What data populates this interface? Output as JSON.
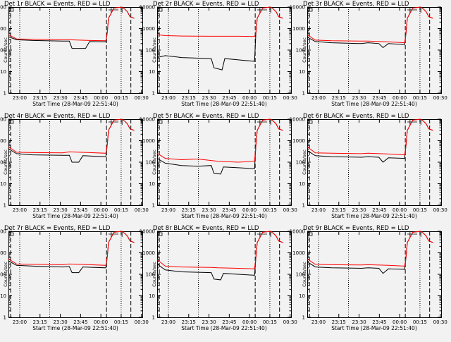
{
  "x_tick_labels": [
    "23:00",
    "23:15",
    "23:30",
    "23:45",
    "00:00",
    "00:15",
    "00:30"
  ],
  "y_tick_labels": [
    "1",
    "10",
    "100",
    "1000",
    "10000"
  ],
  "xlabel": "Start Time (28-Mar-09 22:51:40)",
  "ylabel": "Counts/sec",
  "colors": {
    "events": "#000000",
    "lld": "#ff0000"
  },
  "chart_data": [
    {
      "type": "line",
      "title": "Det 1r BLACK = Events, RED = LLD",
      "xlabel": "Start Time (28-Mar-09 22:51:40)",
      "ylabel": "Counts/sec",
      "yscale": "log",
      "ylim": [
        1,
        10000
      ],
      "xlim_min_after_start": [
        0,
        99
      ],
      "series": [
        {
          "name": "Events",
          "color": "#000000",
          "x": [
            0,
            6,
            18,
            40,
            45,
            47,
            57,
            60,
            72,
            73,
            74,
            78,
            84,
            86,
            88,
            89,
            90,
            93
          ],
          "y": [
            420,
            300,
            280,
            260,
            260,
            120,
            120,
            250,
            240,
            600,
            3000,
            9000,
            10000,
            8000,
            6000,
            4500,
            3500,
            3000
          ]
        },
        {
          "name": "LLD",
          "color": "#ff0000",
          "x": [
            0,
            6,
            18,
            40,
            45,
            60,
            72,
            73,
            74,
            78,
            84,
            86,
            88,
            89,
            90,
            93
          ],
          "y": [
            520,
            330,
            320,
            300,
            300,
            280,
            270,
            600,
            3000,
            9000,
            10000,
            8000,
            6000,
            4500,
            3500,
            3000
          ]
        }
      ]
    },
    {
      "type": "line",
      "title": "Det 2r BLACK = Events, RED = LLD",
      "xlabel": "Start Time (28-Mar-09 22:51:40)",
      "ylabel": "Counts/sec",
      "yscale": "log",
      "ylim": [
        1,
        10000
      ],
      "xlim_min_after_start": [
        0,
        99
      ],
      "series": [
        {
          "name": "Events",
          "color": "#000000",
          "x": [
            0,
            6,
            18,
            40,
            42,
            48,
            50,
            60,
            65,
            72,
            73,
            74,
            78,
            84,
            86,
            88,
            89,
            90,
            93
          ],
          "y": [
            45,
            55,
            45,
            40,
            15,
            12,
            40,
            35,
            33,
            30,
            600,
            3000,
            9000,
            10000,
            8000,
            6000,
            4500,
            3500,
            3000
          ]
        },
        {
          "name": "LLD",
          "color": "#ff0000",
          "x": [
            0,
            6,
            18,
            40,
            45,
            60,
            72,
            73,
            74,
            78,
            84,
            86,
            88,
            89,
            90,
            93
          ],
          "y": [
            520,
            470,
            450,
            440,
            440,
            440,
            430,
            600,
            3000,
            9000,
            10000,
            8000,
            6000,
            4500,
            3500,
            3000
          ]
        }
      ]
    },
    {
      "type": "line",
      "title": "Det 3r BLACK = Events, RED = LLD",
      "xlabel": "Start Time (28-Mar-09 22:51:40)",
      "ylabel": "Counts/sec",
      "yscale": "log",
      "ylim": [
        1,
        10000
      ],
      "xlim_min_after_start": [
        0,
        99
      ],
      "series": [
        {
          "name": "Events",
          "color": "#000000",
          "x": [
            0,
            6,
            18,
            40,
            45,
            53,
            56,
            60,
            72,
            73,
            74,
            78,
            84,
            86,
            88,
            89,
            90,
            93
          ],
          "y": [
            400,
            250,
            220,
            200,
            220,
            200,
            130,
            200,
            180,
            600,
            3000,
            9000,
            10000,
            8000,
            6000,
            4500,
            3500,
            3000
          ]
        },
        {
          "name": "LLD",
          "color": "#ff0000",
          "x": [
            0,
            6,
            18,
            40,
            45,
            60,
            72,
            73,
            74,
            78,
            84,
            86,
            88,
            89,
            90,
            93
          ],
          "y": [
            520,
            290,
            270,
            260,
            260,
            240,
            220,
            600,
            3000,
            9000,
            10000,
            8000,
            6000,
            4500,
            3500,
            3000
          ]
        }
      ]
    },
    {
      "type": "line",
      "title": "Det 4r BLACK = Events, RED = LLD",
      "xlabel": "Start Time (28-Mar-09 22:51:40)",
      "ylabel": "Counts/sec",
      "yscale": "log",
      "ylim": [
        1,
        10000
      ],
      "xlim_min_after_start": [
        0,
        99
      ],
      "series": [
        {
          "name": "Events",
          "color": "#000000",
          "x": [
            0,
            6,
            18,
            40,
            45,
            47,
            52,
            55,
            72,
            73,
            74,
            78,
            84,
            86,
            88,
            89,
            90,
            93
          ],
          "y": [
            420,
            250,
            220,
            210,
            210,
            100,
            100,
            200,
            180,
            600,
            3000,
            9000,
            10000,
            8000,
            6000,
            4500,
            3500,
            3000
          ]
        },
        {
          "name": "LLD",
          "color": "#ff0000",
          "x": [
            0,
            6,
            18,
            40,
            45,
            60,
            72,
            73,
            74,
            78,
            84,
            86,
            88,
            89,
            90,
            93
          ],
          "y": [
            520,
            290,
            280,
            270,
            300,
            280,
            260,
            600,
            3000,
            9000,
            10000,
            8000,
            6000,
            4500,
            3500,
            3000
          ]
        }
      ]
    },
    {
      "type": "line",
      "title": "Det 5r BLACK = Events, RED = LLD",
      "xlabel": "Start Time (28-Mar-09 22:51:40)",
      "ylabel": "Counts/sec",
      "yscale": "log",
      "ylim": [
        1,
        10000
      ],
      "xlim_min_after_start": [
        0,
        99
      ],
      "series": [
        {
          "name": "Events",
          "color": "#000000",
          "x": [
            0,
            6,
            18,
            30,
            40,
            42,
            47,
            49,
            60,
            72,
            73,
            74,
            78,
            84,
            86,
            88,
            89,
            90,
            93
          ],
          "y": [
            150,
            90,
            70,
            65,
            70,
            30,
            28,
            60,
            55,
            50,
            600,
            3000,
            9000,
            10000,
            8000,
            6000,
            4500,
            3500,
            3000
          ]
        },
        {
          "name": "LLD",
          "color": "#ff0000",
          "x": [
            0,
            6,
            18,
            30,
            40,
            45,
            60,
            72,
            73,
            74,
            78,
            84,
            86,
            88,
            89,
            90,
            93
          ],
          "y": [
            260,
            150,
            130,
            140,
            120,
            110,
            100,
            110,
            600,
            3000,
            9000,
            10000,
            8000,
            6000,
            4500,
            3500,
            3000
          ]
        }
      ]
    },
    {
      "type": "line",
      "title": "Det 6r BLACK = Events, RED = LLD",
      "xlabel": "Start Time (28-Mar-09 22:51:40)",
      "ylabel": "Counts/sec",
      "yscale": "log",
      "ylim": [
        1,
        10000
      ],
      "xlim_min_after_start": [
        0,
        99
      ],
      "series": [
        {
          "name": "Events",
          "color": "#000000",
          "x": [
            0,
            6,
            18,
            40,
            45,
            53,
            56,
            60,
            72,
            73,
            74,
            78,
            84,
            86,
            88,
            89,
            90,
            93
          ],
          "y": [
            350,
            200,
            180,
            170,
            180,
            170,
            100,
            160,
            150,
            600,
            3000,
            9000,
            10000,
            8000,
            6000,
            4500,
            3500,
            3000
          ]
        },
        {
          "name": "LLD",
          "color": "#ff0000",
          "x": [
            0,
            6,
            18,
            40,
            45,
            60,
            72,
            73,
            74,
            78,
            84,
            86,
            88,
            89,
            90,
            93
          ],
          "y": [
            520,
            270,
            260,
            250,
            260,
            240,
            220,
            600,
            3000,
            9000,
            10000,
            8000,
            6000,
            4500,
            3500,
            3000
          ]
        }
      ]
    },
    {
      "type": "line",
      "title": "Det 7r BLACK = Events, RED = LLD",
      "xlabel": "Start Time (28-Mar-09 22:51:40)",
      "ylabel": "Counts/sec",
      "yscale": "log",
      "ylim": [
        1,
        10000
      ],
      "xlim_min_after_start": [
        0,
        99
      ],
      "series": [
        {
          "name": "Events",
          "color": "#000000",
          "x": [
            0,
            6,
            18,
            40,
            45,
            47,
            52,
            55,
            72,
            73,
            74,
            78,
            84,
            86,
            88,
            89,
            90,
            93
          ],
          "y": [
            420,
            260,
            240,
            220,
            230,
            120,
            120,
            220,
            200,
            600,
            3000,
            9000,
            10000,
            8000,
            6000,
            4500,
            3500,
            3000
          ]
        },
        {
          "name": "LLD",
          "color": "#ff0000",
          "x": [
            0,
            6,
            18,
            40,
            45,
            60,
            72,
            73,
            74,
            78,
            84,
            86,
            88,
            89,
            90,
            93
          ],
          "y": [
            520,
            300,
            290,
            280,
            300,
            280,
            260,
            600,
            3000,
            9000,
            10000,
            8000,
            6000,
            4500,
            3500,
            3000
          ]
        }
      ]
    },
    {
      "type": "line",
      "title": "Det 8r BLACK = Events, RED = LLD",
      "xlabel": "Start Time (28-Mar-09 22:51:40)",
      "ylabel": "Counts/sec",
      "yscale": "log",
      "ylim": [
        1,
        10000
      ],
      "xlim_min_after_start": [
        0,
        99
      ],
      "series": [
        {
          "name": "Events",
          "color": "#000000",
          "x": [
            0,
            6,
            18,
            40,
            42,
            47,
            49,
            60,
            72,
            73,
            74,
            78,
            84,
            86,
            88,
            89,
            90,
            93
          ],
          "y": [
            300,
            160,
            130,
            120,
            60,
            55,
            110,
            100,
            90,
            600,
            3000,
            9000,
            10000,
            8000,
            6000,
            4500,
            3500,
            3000
          ]
        },
        {
          "name": "LLD",
          "color": "#ff0000",
          "x": [
            0,
            6,
            18,
            40,
            45,
            60,
            72,
            73,
            74,
            78,
            84,
            86,
            88,
            89,
            90,
            93
          ],
          "y": [
            480,
            240,
            220,
            210,
            200,
            190,
            180,
            600,
            3000,
            9000,
            10000,
            8000,
            6000,
            4500,
            3500,
            3000
          ]
        }
      ]
    },
    {
      "type": "line",
      "title": "Det 9r BLACK = Events, RED = LLD",
      "xlabel": "Start Time (28-Mar-09 22:51:40)",
      "ylabel": "Counts/sec",
      "yscale": "log",
      "ylim": [
        1,
        10000
      ],
      "xlim_min_after_start": [
        0,
        99
      ],
      "series": [
        {
          "name": "Events",
          "color": "#000000",
          "x": [
            0,
            6,
            18,
            40,
            45,
            53,
            56,
            60,
            72,
            73,
            74,
            78,
            84,
            86,
            88,
            89,
            90,
            93
          ],
          "y": [
            380,
            220,
            200,
            190,
            200,
            190,
            110,
            180,
            170,
            600,
            3000,
            9000,
            10000,
            8000,
            6000,
            4500,
            3500,
            3000
          ]
        },
        {
          "name": "LLD",
          "color": "#ff0000",
          "x": [
            0,
            6,
            18,
            40,
            45,
            60,
            72,
            73,
            74,
            78,
            84,
            86,
            88,
            89,
            90,
            93
          ],
          "y": [
            520,
            290,
            280,
            270,
            280,
            260,
            240,
            600,
            3000,
            9000,
            10000,
            8000,
            6000,
            4500,
            3500,
            3000
          ]
        }
      ]
    }
  ]
}
